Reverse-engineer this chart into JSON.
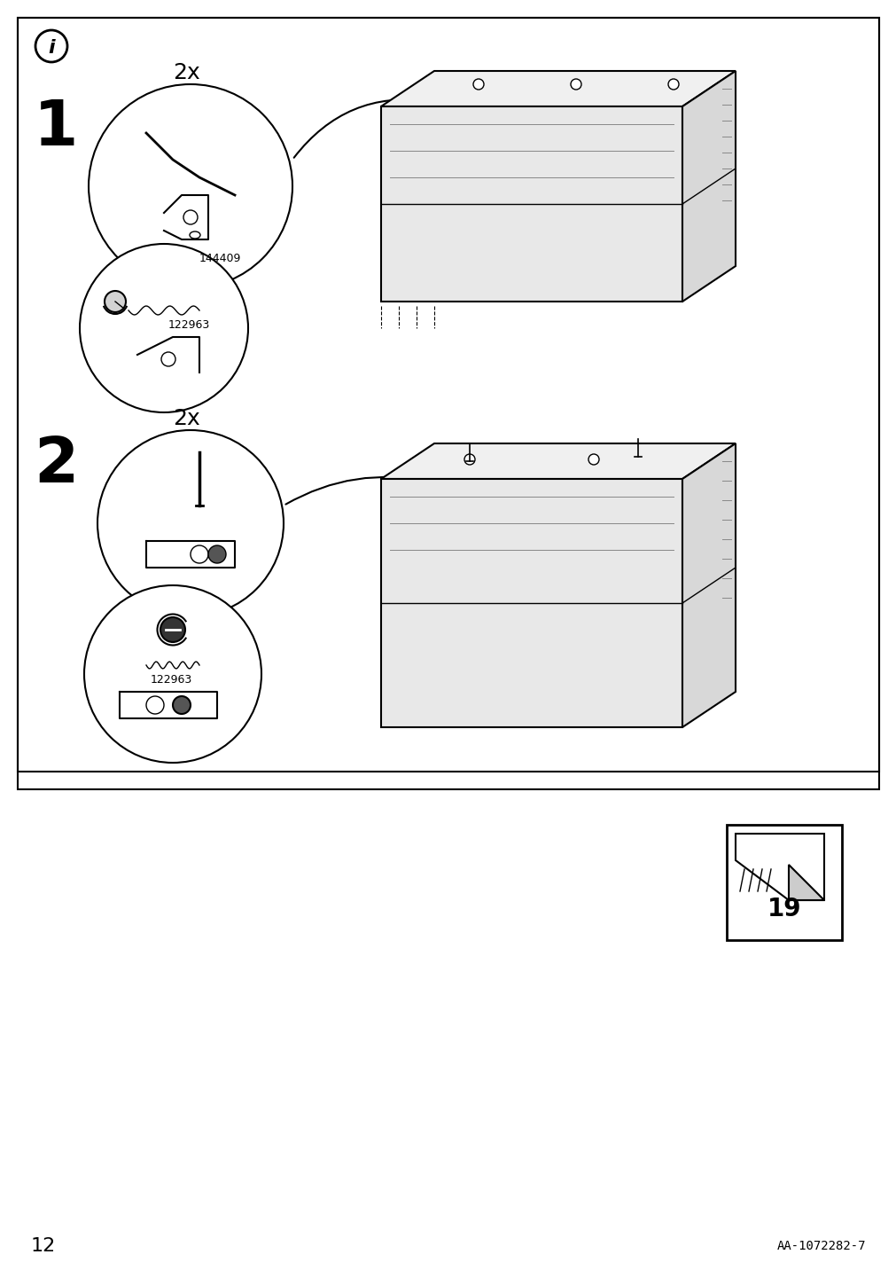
{
  "page_number": "12",
  "article_number": "AA-1072282-7",
  "background_color": "#ffffff",
  "border_color": "#000000",
  "text_color": "#000000",
  "step1_label": "1",
  "step2_label": "2",
  "quantity_label": "2x",
  "part_id1": "144409",
  "part_id2": "122963",
  "page_icon_number": "19",
  "info_icon": true
}
